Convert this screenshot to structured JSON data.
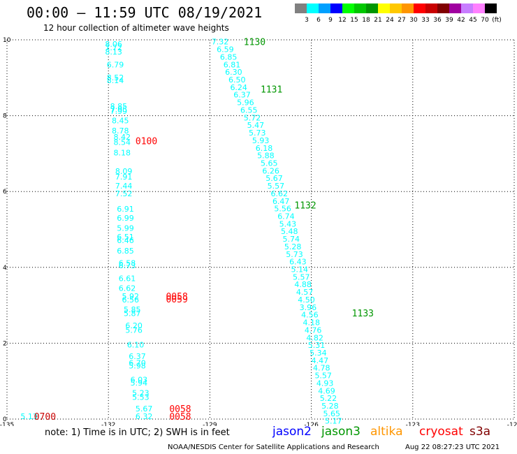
{
  "header": {
    "title": "00:00 – 11:59 UTC 08/19/2021",
    "subtitle": "12 hour collection of altimeter wave heights"
  },
  "colorbar": {
    "colors": [
      "#808080",
      "#00ffff",
      "#00a0ff",
      "#0000ff",
      "#00ff00",
      "#00c800",
      "#009600",
      "#ffff00",
      "#ffc800",
      "#ff9600",
      "#ff0000",
      "#c80000",
      "#800000",
      "#a000a0",
      "#c87dff",
      "#ff80ff",
      "#000000"
    ],
    "labels": [
      "3",
      "6",
      "9",
      "12",
      "15",
      "18",
      "21",
      "24",
      "27",
      "30",
      "33",
      "36",
      "39",
      "42",
      "45",
      "70",
      "(ft)"
    ]
  },
  "footer": {
    "note": "note: 1) Time is in UTC; 2) SWH is in feet",
    "satellites": [
      {
        "name": "jason2",
        "color": "#0000ff"
      },
      {
        "name": "jason3",
        "color": "#009600"
      },
      {
        "name": "altika",
        "color": "#ff9600"
      },
      {
        "name": "cryosat",
        "color": "#ff0000"
      },
      {
        "name": "s3a",
        "color": "#800000"
      }
    ],
    "credit": "NOAA/NESDIS Center for Satellite Applications and Research",
    "timestamp": "Aug 22 08:27:23 UTC 2021"
  },
  "chart_data": {
    "type": "scatter",
    "xlim": [
      -135,
      -120
    ],
    "ylim": [
      0,
      10
    ],
    "xticks": [
      -135,
      -132,
      -129,
      -126,
      -123,
      -120
    ],
    "yticks": [
      0,
      2,
      4,
      6,
      8,
      10
    ],
    "grid": true,
    "value_color": "#00ffff",
    "tracks": [
      {
        "satellite": "cryosat",
        "labels": [],
        "points": [
          {
            "x": -134.6,
            "y": 0.07,
            "v": "5.13"
          }
        ]
      },
      {
        "satellite": "cryosat",
        "labels": [
          {
            "x": -134.2,
            "y": 0.07,
            "t": "0700",
            "color": "#c80000"
          },
          {
            "x": -131.2,
            "y": 7.34,
            "t": "0100",
            "color": "#ff0000"
          },
          {
            "x": -130.3,
            "y": 3.24,
            "t": "0058",
            "color": "#ff0000"
          },
          {
            "x": -130.3,
            "y": 3.17,
            "t": "0059",
            "color": "#ff0000"
          },
          {
            "x": -130.2,
            "y": 0.28,
            "t": "0058",
            "color": "#ff0000"
          },
          {
            "x": -130.2,
            "y": 0.07,
            "t": "0058",
            "color": "#ff0000"
          }
        ],
        "points": [
          {
            "x": -132.1,
            "y": 9.89,
            "v": "8.06"
          },
          {
            "x": -132.1,
            "y": 9.8,
            "v": "7.72"
          },
          {
            "x": -132.1,
            "y": 9.69,
            "v": "8.13"
          },
          {
            "x": -132.05,
            "y": 9.35,
            "v": "6.79"
          },
          {
            "x": -132.05,
            "y": 9.01,
            "v": "8.52"
          },
          {
            "x": -132.05,
            "y": 8.93,
            "v": "8.14"
          },
          {
            "x": -131.95,
            "y": 8.25,
            "v": "8.85"
          },
          {
            "x": -131.95,
            "y": 8.17,
            "v": "7.95"
          },
          {
            "x": -131.95,
            "y": 8.12,
            "v": "7.99"
          },
          {
            "x": -131.9,
            "y": 7.87,
            "v": "8.45"
          },
          {
            "x": -131.9,
            "y": 7.61,
            "v": "8.78"
          },
          {
            "x": -131.85,
            "y": 7.44,
            "v": "8.42"
          },
          {
            "x": -131.85,
            "y": 7.3,
            "v": "8.54"
          },
          {
            "x": -131.85,
            "y": 7.03,
            "v": "8.18"
          },
          {
            "x": -131.8,
            "y": 6.54,
            "v": "8.09"
          },
          {
            "x": -131.8,
            "y": 6.39,
            "v": "7.91"
          },
          {
            "x": -131.8,
            "y": 6.15,
            "v": "7.44"
          },
          {
            "x": -131.8,
            "y": 5.95,
            "v": "7.52"
          },
          {
            "x": -131.75,
            "y": 5.54,
            "v": "6.91"
          },
          {
            "x": -131.75,
            "y": 5.3,
            "v": "6.99"
          },
          {
            "x": -131.75,
            "y": 5.04,
            "v": "5.99"
          },
          {
            "x": -131.75,
            "y": 4.81,
            "v": "6.51"
          },
          {
            "x": -131.75,
            "y": 4.71,
            "v": "6.46"
          },
          {
            "x": -131.75,
            "y": 4.44,
            "v": "6.85"
          },
          {
            "x": -131.7,
            "y": 4.12,
            "v": "6.58"
          },
          {
            "x": -131.7,
            "y": 4.05,
            "v": "6.73"
          },
          {
            "x": -131.7,
            "y": 3.71,
            "v": "6.61"
          },
          {
            "x": -131.7,
            "y": 3.45,
            "v": "6.62"
          },
          {
            "x": -131.6,
            "y": 3.24,
            "v": "5.92"
          },
          {
            "x": -131.6,
            "y": 3.15,
            "v": "6.56"
          },
          {
            "x": -131.55,
            "y": 2.89,
            "v": "5.85"
          },
          {
            "x": -131.55,
            "y": 2.79,
            "v": "5.87"
          },
          {
            "x": -131.5,
            "y": 2.47,
            "v": "6.20"
          },
          {
            "x": -131.5,
            "y": 2.35,
            "v": "5.76"
          },
          {
            "x": -131.45,
            "y": 1.96,
            "v": "6.10"
          },
          {
            "x": -131.4,
            "y": 1.66,
            "v": "6.37"
          },
          {
            "x": -131.4,
            "y": 1.48,
            "v": "6.70"
          },
          {
            "x": -131.4,
            "y": 1.41,
            "v": "5.98"
          },
          {
            "x": -131.35,
            "y": 1.04,
            "v": "6.03"
          },
          {
            "x": -131.35,
            "y": 0.96,
            "v": "5.94"
          },
          {
            "x": -131.3,
            "y": 0.69,
            "v": "5.23"
          },
          {
            "x": -131.3,
            "y": 0.58,
            "v": "5.53"
          },
          {
            "x": -131.2,
            "y": 0.28,
            "v": "5.67"
          },
          {
            "x": -131.2,
            "y": 0.07,
            "v": "6.32"
          }
        ]
      },
      {
        "satellite": "jason3",
        "labels": [
          {
            "x": -128.0,
            "y": 9.95,
            "t": "1130",
            "color": "#009600"
          },
          {
            "x": -127.5,
            "y": 8.7,
            "t": "1131",
            "color": "#009600"
          },
          {
            "x": -126.5,
            "y": 5.64,
            "t": "1132",
            "color": "#009600"
          },
          {
            "x": -124.8,
            "y": 2.8,
            "t": "1133",
            "color": "#009600"
          }
        ],
        "points": [
          {
            "x": -128.95,
            "y": 9.95,
            "v": "7.32"
          },
          {
            "x": -128.8,
            "y": 9.75,
            "v": "6.59"
          },
          {
            "x": -128.7,
            "y": 9.55,
            "v": "6.85"
          },
          {
            "x": -128.6,
            "y": 9.35,
            "v": "6.81"
          },
          {
            "x": -128.55,
            "y": 9.15,
            "v": "6.30"
          },
          {
            "x": -128.45,
            "y": 8.95,
            "v": "6.50"
          },
          {
            "x": -128.4,
            "y": 8.75,
            "v": "6.24"
          },
          {
            "x": -128.3,
            "y": 8.55,
            "v": "6.37"
          },
          {
            "x": -128.2,
            "y": 8.35,
            "v": "5.96"
          },
          {
            "x": -128.1,
            "y": 8.15,
            "v": "6.55"
          },
          {
            "x": -128.0,
            "y": 7.95,
            "v": "5.72"
          },
          {
            "x": -127.9,
            "y": 7.75,
            "v": "5.47"
          },
          {
            "x": -127.85,
            "y": 7.55,
            "v": "5.73"
          },
          {
            "x": -127.75,
            "y": 7.35,
            "v": "5.93"
          },
          {
            "x": -127.65,
            "y": 7.15,
            "v": "6.18"
          },
          {
            "x": -127.6,
            "y": 6.95,
            "v": "5.88"
          },
          {
            "x": -127.5,
            "y": 6.75,
            "v": "5.65"
          },
          {
            "x": -127.45,
            "y": 6.55,
            "v": "6.26"
          },
          {
            "x": -127.35,
            "y": 6.35,
            "v": "5.67"
          },
          {
            "x": -127.3,
            "y": 6.15,
            "v": "5.57"
          },
          {
            "x": -127.2,
            "y": 5.95,
            "v": "6.62"
          },
          {
            "x": -127.15,
            "y": 5.75,
            "v": "6.47"
          },
          {
            "x": -127.1,
            "y": 5.55,
            "v": "5.56"
          },
          {
            "x": -127.0,
            "y": 5.35,
            "v": "6.74"
          },
          {
            "x": -126.95,
            "y": 5.15,
            "v": "5.43"
          },
          {
            "x": -126.9,
            "y": 4.95,
            "v": "5.48"
          },
          {
            "x": -126.85,
            "y": 4.75,
            "v": "5.74"
          },
          {
            "x": -126.8,
            "y": 4.55,
            "v": "5.28"
          },
          {
            "x": -126.75,
            "y": 4.35,
            "v": "5.73"
          },
          {
            "x": -126.65,
            "y": 4.15,
            "v": "6.43"
          },
          {
            "x": -126.6,
            "y": 3.95,
            "v": "5.14"
          },
          {
            "x": -126.55,
            "y": 3.75,
            "v": "5.57"
          },
          {
            "x": -126.5,
            "y": 3.55,
            "v": "4.88"
          },
          {
            "x": -126.45,
            "y": 3.35,
            "v": "4.57"
          },
          {
            "x": -126.4,
            "y": 3.15,
            "v": "4.50"
          },
          {
            "x": -126.35,
            "y": 2.95,
            "v": "3.96"
          },
          {
            "x": -126.3,
            "y": 2.75,
            "v": "4.56"
          },
          {
            "x": -126.25,
            "y": 2.55,
            "v": "4.18"
          },
          {
            "x": -126.2,
            "y": 2.35,
            "v": "4.76"
          },
          {
            "x": -126.15,
            "y": 2.15,
            "v": "4.82"
          },
          {
            "x": -126.1,
            "y": 1.95,
            "v": "5.31"
          },
          {
            "x": -126.05,
            "y": 1.75,
            "v": "5.34"
          },
          {
            "x": -126.0,
            "y": 1.55,
            "v": "4.47"
          },
          {
            "x": -125.95,
            "y": 1.35,
            "v": "4.78"
          },
          {
            "x": -125.9,
            "y": 1.15,
            "v": "5.57"
          },
          {
            "x": -125.85,
            "y": 0.95,
            "v": "4.93"
          },
          {
            "x": -125.8,
            "y": 0.75,
            "v": "4.69"
          },
          {
            "x": -125.75,
            "y": 0.55,
            "v": "5.22"
          },
          {
            "x": -125.7,
            "y": 0.35,
            "v": "5.28"
          },
          {
            "x": -125.65,
            "y": 0.15,
            "v": "5.65"
          },
          {
            "x": -125.6,
            "y": -0.05,
            "v": "5.17"
          }
        ]
      }
    ]
  }
}
